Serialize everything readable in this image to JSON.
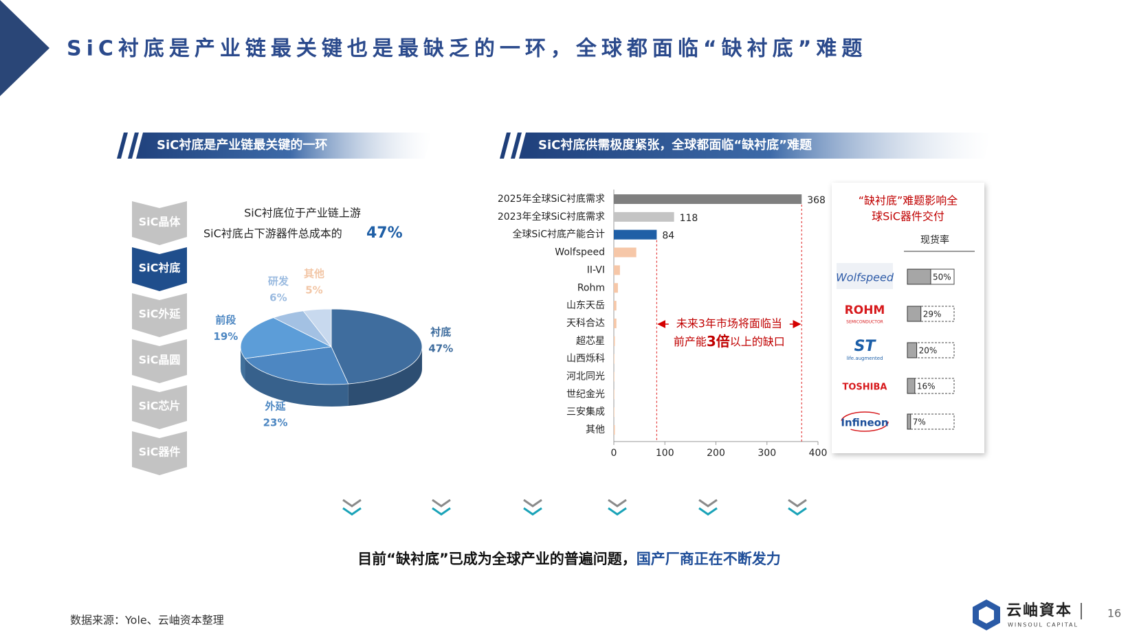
{
  "title": "SiC衬底是产业链最关键也是最缺乏的一环，全球都面临“缺衬底”难题",
  "sections": [
    "SiC衬底是产业链最关键的一环",
    "SiC衬底供需极度紧张，全球都面临“缺衬底”难题"
  ],
  "chain": [
    "SiC晶体",
    "SiC衬底",
    "SiC外延",
    "SiC晶圆",
    "SiC芯片",
    "SiC器件"
  ],
  "chain_active": 1,
  "pie_notes": [
    "SiC衬底位于产业链上游",
    "SiC衬底占下游器件总成本的"
  ],
  "chart_data": [
    {
      "type": "pie",
      "categories": [
        "衬底",
        "外延",
        "前段",
        "研发",
        "其他"
      ],
      "values": [
        47,
        23,
        19,
        6,
        5
      ],
      "value_labels": [
        "47%",
        "23%",
        "19%",
        "6%",
        "5%"
      ],
      "colors": [
        "#3f6d9e",
        "#4d87c2",
        "#5c9dd8",
        "#a3c1e3",
        "#c8d9ee"
      ],
      "label_colors": [
        "#3f6d9e",
        "#4d87c2",
        "#4d87c2",
        "#9bbbe0",
        "#f2c6a6"
      ]
    },
    {
      "type": "hbar",
      "categories": [
        "2025年全球SiC衬底需求",
        "2023年全球SiC衬底需求",
        "全球SiC衬底产能合计",
        "Wolfspeed",
        "II-VI",
        "Rohm",
        "山东天岳",
        "天科合达",
        "超芯星",
        "山西烁科",
        "河北同光",
        "世纪金光",
        "三安集成",
        "其他"
      ],
      "values": [
        368,
        118,
        84,
        44,
        12,
        8,
        5,
        5,
        2,
        1,
        1,
        1,
        1,
        2
      ],
      "value_labels": [
        "368",
        "118",
        "84",
        null,
        null,
        null,
        null,
        null,
        null,
        null,
        null,
        null,
        null,
        null
      ],
      "colors": [
        "#7f7f7f",
        "#c4c4c4",
        "#1f5fa6",
        "#f6c7a8",
        "#f6c7a8",
        "#f6c7a8",
        "#f6c7a8",
        "#f6c7a8",
        "#f6c7a8",
        "#f6c7a8",
        "#f6c7a8",
        "#f6c7a8",
        "#f6c7a8",
        "#f6c7a8"
      ],
      "xlim": [
        0,
        400
      ],
      "xticks": [
        0,
        100,
        200,
        300,
        400
      ],
      "annotation": [
        "未来3年市场将面临当",
        "前产能",
        "3倍",
        "以上的缺口"
      ]
    },
    {
      "type": "rate",
      "title_lines": [
        "“缺衬底”难题影响全",
        "球SiC器件交付"
      ],
      "column_label": "现货率",
      "categories": [
        "Wolfspeed",
        "ROHM",
        "ST",
        "TOSHIBA",
        "Infineon"
      ],
      "logo_captions": [
        null,
        "SEMICONDUCTOR",
        "life.augmented",
        null,
        null
      ],
      "values": [
        50,
        29,
        20,
        16,
        7
      ],
      "value_labels": [
        "50%",
        "29%",
        "20%",
        "16%",
        "7%"
      ],
      "xlim": [
        0,
        100
      ],
      "color": "#a6a6a6"
    }
  ],
  "conclusion": [
    "目前“缺衬底”已成为全球产业的普遍问题，",
    "国产厂商正在不断发力"
  ],
  "source": "数据来源：Yole、云岫资本整理",
  "brand": {
    "name": "云岫資本",
    "tagline": "WINSOUL CAPITAL"
  },
  "page_number": 16
}
